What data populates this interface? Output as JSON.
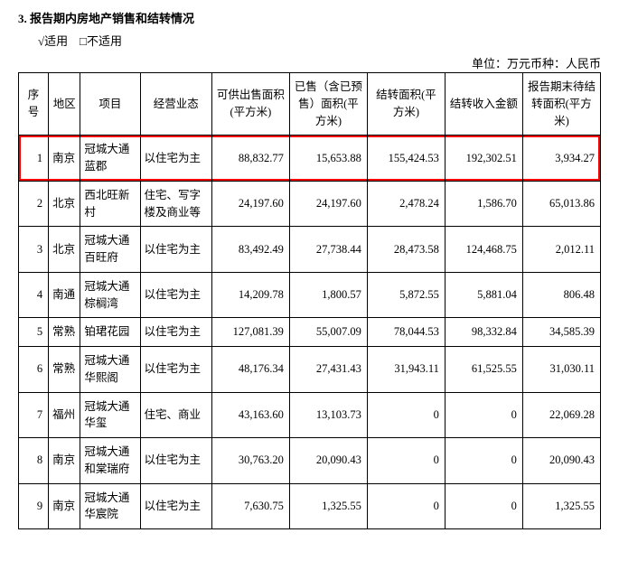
{
  "heading_number": "3.",
  "heading_text": "报告期内房地产销售和结转情况",
  "subline": "√适用　□不适用",
  "unit_text": "单位：万元币种：人民币",
  "columns": [
    "序号",
    "地区",
    "项目",
    "经营业态",
    "可供出售面积(平方米)",
    "已售（含已预售）面积(平方米)",
    "结转面积(平方米)",
    "结转收入金额",
    "报告期末待结转面积(平方米)"
  ],
  "highlight_index": 0,
  "highlight_color": "#ff0000",
  "rows": [
    {
      "idx": "1",
      "region": "南京",
      "project": "冠城大通蓝郡",
      "biz": "以住宅为主",
      "c1": "88,832.77",
      "c2": "15,653.88",
      "c3": "155,424.53",
      "c4": "192,302.51",
      "c5": "3,934.27"
    },
    {
      "idx": "2",
      "region": "北京",
      "project": "西北旺新村",
      "biz": "住宅、写字楼及商业等",
      "c1": "24,197.60",
      "c2": "24,197.60",
      "c3": "2,478.24",
      "c4": "1,586.70",
      "c5": "65,013.86"
    },
    {
      "idx": "3",
      "region": "北京",
      "project": "冠城大通百旺府",
      "biz": "以住宅为主",
      "c1": "83,492.49",
      "c2": "27,738.44",
      "c3": "28,473.58",
      "c4": "124,468.75",
      "c5": "2,012.11"
    },
    {
      "idx": "4",
      "region": "南通",
      "project": "冠城大通棕榈湾",
      "biz": "以住宅为主",
      "c1": "14,209.78",
      "c2": "1,800.57",
      "c3": "5,872.55",
      "c4": "5,881.04",
      "c5": "806.48"
    },
    {
      "idx": "5",
      "region": "常熟",
      "project": "铂珺花园",
      "biz": "以住宅为主",
      "c1": "127,081.39",
      "c2": "55,007.09",
      "c3": "78,044.53",
      "c4": "98,332.84",
      "c5": "34,585.39"
    },
    {
      "idx": "6",
      "region": "常熟",
      "project": "冠城大通华熙阁",
      "biz": "以住宅为主",
      "c1": "48,176.34",
      "c2": "27,431.43",
      "c3": "31,943.11",
      "c4": "61,525.55",
      "c5": "31,030.11"
    },
    {
      "idx": "7",
      "region": "福州",
      "project": "冠城大通华玺",
      "biz": "住宅、商业",
      "c1": "43,163.60",
      "c2": "13,103.73",
      "c3": "0",
      "c4": "0",
      "c5": "22,069.28"
    },
    {
      "idx": "8",
      "region": "南京",
      "project": "冠城大通和棠瑞府",
      "biz": "以住宅为主",
      "c1": "30,763.20",
      "c2": "20,090.43",
      "c3": "0",
      "c4": "0",
      "c5": "20,090.43"
    },
    {
      "idx": "9",
      "region": "南京",
      "project": "冠城大通华宸院",
      "biz": "以住宅为主",
      "c1": "7,630.75",
      "c2": "1,325.55",
      "c3": "0",
      "c4": "0",
      "c5": "1,325.55"
    }
  ]
}
